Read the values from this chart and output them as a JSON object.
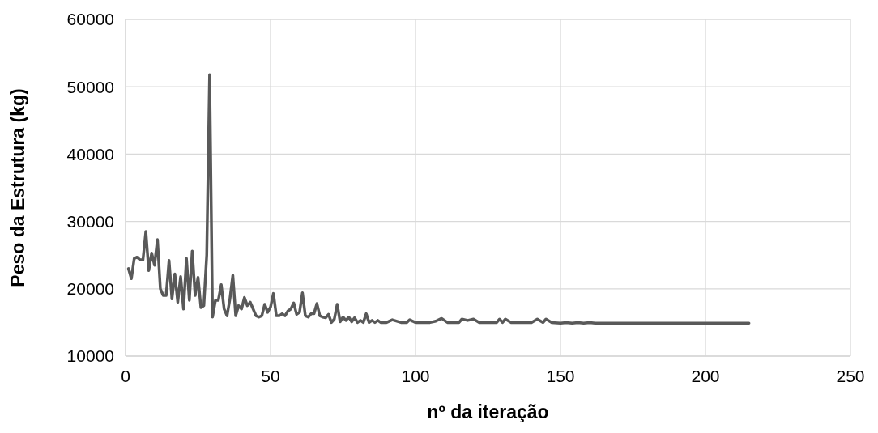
{
  "chart_data": {
    "type": "line",
    "xlabel": "nº da iteração",
    "ylabel": "Peso da Estrutura (kg)",
    "xlim": [
      0,
      250
    ],
    "xticks": [
      0,
      50,
      100,
      150,
      200,
      250
    ],
    "ylim": [
      10000,
      60000
    ],
    "yticks": [
      10000,
      20000,
      30000,
      40000,
      50000,
      60000
    ],
    "grid": true,
    "marker": "none",
    "line_style": "solid",
    "series": [
      {
        "color": "#595959",
        "x": [
          1,
          2,
          3,
          4,
          5,
          6,
          7,
          8,
          9,
          10,
          11,
          12,
          13,
          14,
          15,
          16,
          17,
          18,
          19,
          20,
          21,
          22,
          23,
          24,
          25,
          26,
          27,
          28,
          29,
          30,
          31,
          32,
          33,
          34,
          35,
          36,
          37,
          38,
          39,
          40,
          41,
          42,
          43,
          44,
          45,
          46,
          47,
          48,
          49,
          50,
          51,
          52,
          53,
          54,
          55,
          56,
          57,
          58,
          59,
          60,
          61,
          62,
          63,
          64,
          65,
          66,
          67,
          68,
          69,
          70,
          71,
          72,
          73,
          74,
          75,
          76,
          77,
          78,
          79,
          80,
          81,
          82,
          83,
          84,
          85,
          86,
          87,
          88,
          90,
          92,
          95,
          97,
          98,
          100,
          105,
          107,
          109,
          111,
          115,
          116,
          118,
          120,
          122,
          125,
          128,
          129,
          130,
          131,
          133,
          140,
          142,
          144,
          145,
          147,
          150,
          152,
          154,
          156,
          158,
          160,
          162,
          215
        ],
        "values": [
          23000,
          21500,
          24500,
          24700,
          24300,
          24300,
          28500,
          22700,
          25300,
          23500,
          27300,
          20000,
          19000,
          19000,
          24200,
          18500,
          22200,
          18000,
          21800,
          17000,
          24500,
          18300,
          25600,
          19000,
          21700,
          17200,
          17500,
          25000,
          51800,
          15800,
          18300,
          18300,
          20600,
          17000,
          16000,
          18500,
          22000,
          16000,
          17500,
          17000,
          18700,
          17500,
          18000,
          17000,
          16000,
          15800,
          16000,
          17700,
          16500,
          17300,
          19300,
          16000,
          16000,
          16300,
          16000,
          16700,
          17000,
          17900,
          16200,
          16500,
          19400,
          16000,
          15800,
          16300,
          16300,
          17800,
          16000,
          15800,
          15700,
          16200,
          15000,
          15500,
          17700,
          15100,
          15800,
          15300,
          15800,
          15100,
          15700,
          15000,
          15300,
          15000,
          16300,
          15000,
          15300,
          15000,
          15300,
          15000,
          15000,
          15400,
          15000,
          15000,
          15400,
          15000,
          15000,
          15200,
          15600,
          15000,
          15000,
          15500,
          15300,
          15500,
          15000,
          15000,
          15000,
          15500,
          15000,
          15500,
          15000,
          15000,
          15500,
          15000,
          15500,
          15000,
          14900,
          15000,
          14900,
          15000,
          14900,
          15000,
          14900,
          14900
        ]
      }
    ]
  }
}
